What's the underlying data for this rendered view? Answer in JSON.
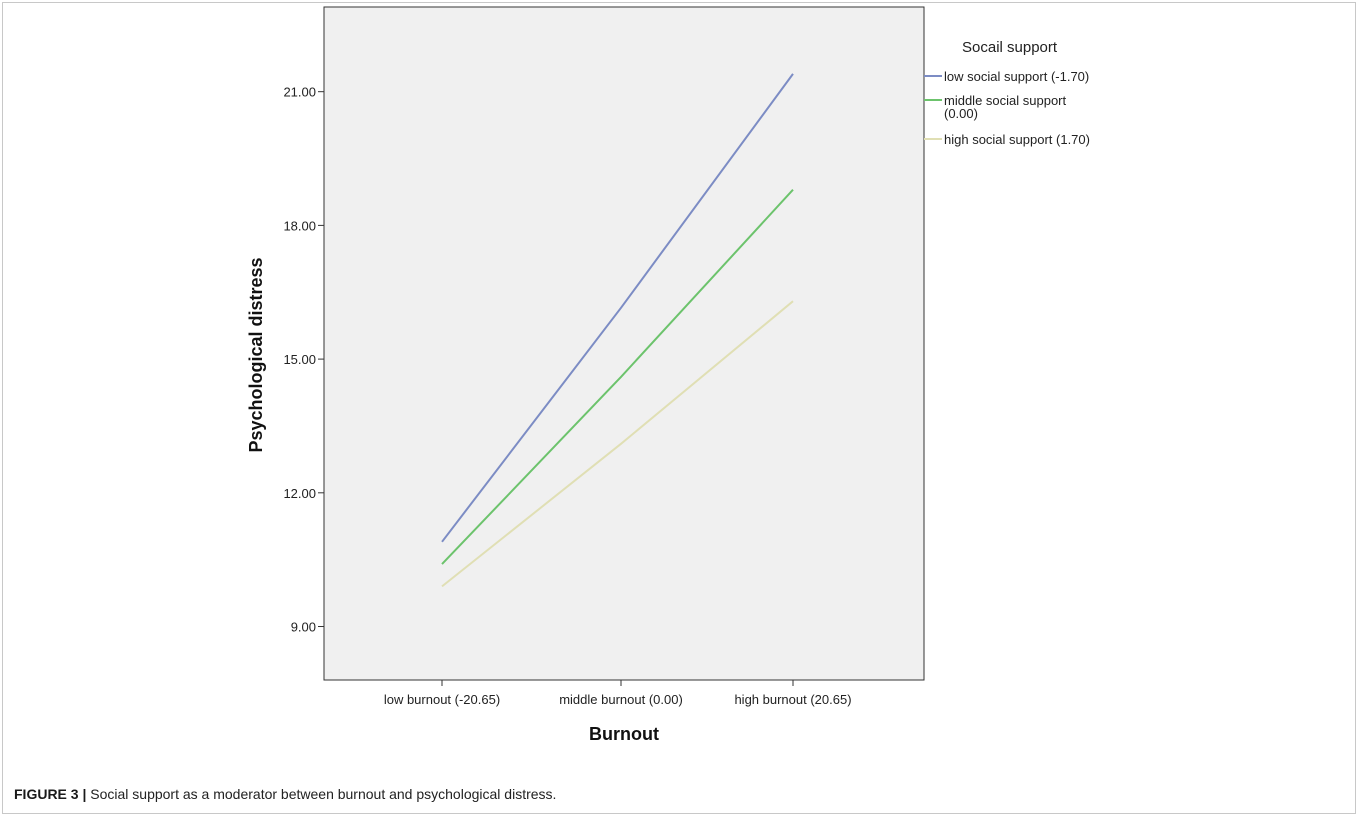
{
  "caption": {
    "label": "FIGURE 3 |",
    "text": " Social support as a moderator between burnout and psychological distress."
  },
  "chart_data": {
    "type": "line",
    "title": "",
    "xlabel": "Burnout",
    "ylabel": "Psychological distress",
    "categories": [
      "low burnout (-20.65)",
      "middle burnout (0.00)",
      "high burnout (20.65)"
    ],
    "y_ticks": [
      "9.00",
      "12.00",
      "15.00",
      "18.00",
      "21.00"
    ],
    "ylim": [
      7.8,
      22.9
    ],
    "grid": false,
    "legend_position": "right",
    "legend_title": "Socail support",
    "series": [
      {
        "name": "low social support (-1.70)",
        "name_lines": [
          "low social support (-1.70)"
        ],
        "color": "#7c8cc4",
        "values": [
          10.9,
          16.15,
          21.4
        ]
      },
      {
        "name": "middle social support (0.00)",
        "name_lines": [
          "middle social support",
          "(0.00)"
        ],
        "color": "#6cc36c",
        "values": [
          10.4,
          14.6,
          18.8
        ]
      },
      {
        "name": "high social support (1.70)",
        "name_lines": [
          "high social support (1.70)"
        ],
        "color": "#e0dfb4",
        "values": [
          9.9,
          13.1,
          16.3
        ]
      }
    ],
    "colors": {
      "plot_background": "#f0f0f0",
      "axis": "#333333"
    }
  }
}
